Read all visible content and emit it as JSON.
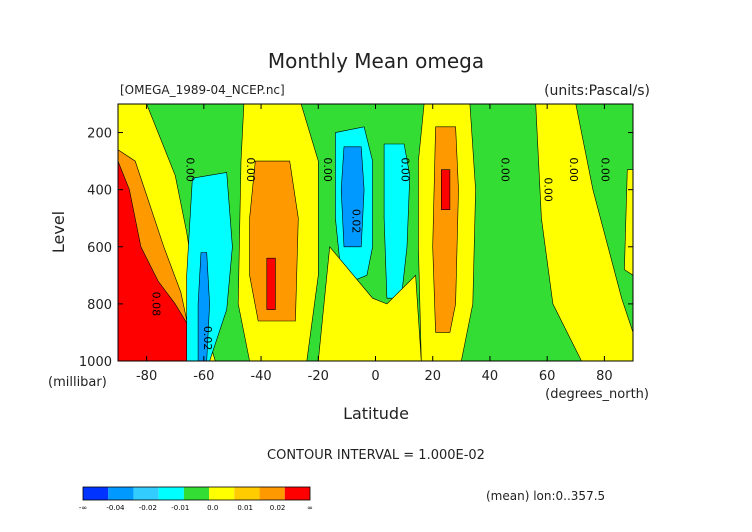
{
  "chart_data": {
    "type": "heatmap",
    "title": "Monthly Mean omega",
    "file_label": "[OMEGA_1989-04_NCEP.nc]",
    "units_label": "(units:Pascal/s)",
    "xlabel": "Latitude",
    "x_unit_label": "(degrees_north)",
    "ylabel": "Level",
    "y_unit_label": "(millibar)",
    "xlim": [
      -90,
      90
    ],
    "ylim": [
      1000,
      100
    ],
    "x_ticks": [
      -80,
      -60,
      -40,
      -20,
      0,
      20,
      40,
      60,
      80
    ],
    "x_tick_labels": [
      "-80",
      "-60",
      "-40",
      "-20",
      "0",
      "20",
      "40",
      "60",
      "80"
    ],
    "y_ticks": [
      200,
      400,
      600,
      800,
      1000
    ],
    "y_tick_labels": [
      "200",
      "400",
      "600",
      "800",
      "1000"
    ],
    "contour_interval_text": "CONTOUR INTERVAL = 1.000E-02",
    "mean_text": "(mean) lon:0..357.5",
    "colorbar": {
      "colors": [
        "#0033ff",
        "#0099ff",
        "#33ccff",
        "#00ffff",
        "#33dd33",
        "#ffff00",
        "#ffcc00",
        "#ff9900",
        "#ff0000"
      ],
      "tick_labels": [
        "-∞",
        "-0.04",
        "-0.02",
        "-0.01",
        "0.0",
        "0.01",
        "0.02",
        "∞"
      ]
    },
    "regions": [
      {
        "name": "green-background",
        "color": "#33dd33",
        "points": [
          [
            -90,
            100
          ],
          [
            90,
            100
          ],
          [
            90,
            1000
          ],
          [
            -90,
            1000
          ]
        ]
      },
      {
        "name": "yellow-southern-pole",
        "color": "#ffff00",
        "points": [
          [
            -90,
            100
          ],
          [
            -80,
            100
          ],
          [
            -76,
            200
          ],
          [
            -70,
            350
          ],
          [
            -66,
            550
          ],
          [
            -62,
            800
          ],
          [
            -56,
            1000
          ],
          [
            -90,
            1000
          ]
        ]
      },
      {
        "name": "orange-southern-pole",
        "color": "#ff9900",
        "points": [
          [
            -90,
            260
          ],
          [
            -84,
            300
          ],
          [
            -79,
            450
          ],
          [
            -74,
            600
          ],
          [
            -68,
            760
          ],
          [
            -63,
            1000
          ],
          [
            -90,
            1000
          ]
        ]
      },
      {
        "name": "red-southern-pole",
        "color": "#ff0000",
        "points": [
          [
            -90,
            300
          ],
          [
            -86,
            400
          ],
          [
            -82,
            600
          ],
          [
            -76,
            720
          ],
          [
            -70,
            800
          ],
          [
            -64,
            900
          ],
          [
            -63,
            1000
          ],
          [
            -90,
            1000
          ]
        ]
      },
      {
        "name": "cyan-60s",
        "color": "#00ffff",
        "points": [
          [
            -64,
            360
          ],
          [
            -52,
            340
          ],
          [
            -50,
            600
          ],
          [
            -52,
            820
          ],
          [
            -58,
            1000
          ],
          [
            -66,
            1000
          ],
          [
            -66,
            700
          ]
        ]
      },
      {
        "name": "blue-60s",
        "color": "#0099ff",
        "points": [
          [
            -61,
            620
          ],
          [
            -59,
            620
          ],
          [
            -58,
            800
          ],
          [
            -59,
            1000
          ],
          [
            -62,
            1000
          ],
          [
            -62,
            800
          ]
        ]
      },
      {
        "name": "yellow-40s",
        "color": "#ffff00",
        "points": [
          [
            -46,
            100
          ],
          [
            -26,
            100
          ],
          [
            -20,
            300
          ],
          [
            -20,
            700
          ],
          [
            -24,
            1000
          ],
          [
            -44,
            1000
          ],
          [
            -48,
            800
          ],
          [
            -47,
            300
          ]
        ]
      },
      {
        "name": "orange-40s",
        "color": "#ff9900",
        "points": [
          [
            -42,
            300
          ],
          [
            -30,
            300
          ],
          [
            -27,
            500
          ],
          [
            -28,
            860
          ],
          [
            -41,
            860
          ],
          [
            -44,
            700
          ],
          [
            -44,
            500
          ]
        ]
      },
      {
        "name": "red-40s",
        "color": "#ff0000",
        "points": [
          [
            -38,
            640
          ],
          [
            -35,
            640
          ],
          [
            -35,
            820
          ],
          [
            -38,
            820
          ]
        ]
      },
      {
        "name": "cyan-tropics",
        "color": "#00ffff",
        "points": [
          [
            -14,
            200
          ],
          [
            -4,
            180
          ],
          [
            -1,
            300
          ],
          [
            -1,
            600
          ],
          [
            -3,
            700
          ],
          [
            -8,
            720
          ],
          [
            -12,
            700
          ],
          [
            -14,
            500
          ]
        ]
      },
      {
        "name": "blue-tropics",
        "color": "#0099ff",
        "points": [
          [
            -11,
            250
          ],
          [
            -5,
            250
          ],
          [
            -4,
            400
          ],
          [
            -5,
            600
          ],
          [
            -11,
            600
          ],
          [
            -12,
            400
          ]
        ]
      },
      {
        "name": "cyan-equator-north",
        "color": "#00ffff",
        "points": [
          [
            3,
            240
          ],
          [
            10,
            240
          ],
          [
            12,
            350
          ],
          [
            11,
            600
          ],
          [
            9,
            780
          ],
          [
            4,
            780
          ],
          [
            3,
            500
          ]
        ]
      },
      {
        "name": "yellow-tropics-band",
        "color": "#ffff00",
        "points": [
          [
            -16,
            600
          ],
          [
            -1,
            780
          ],
          [
            4,
            800
          ],
          [
            14,
            700
          ],
          [
            16,
            1000
          ],
          [
            -20,
            1000
          ]
        ]
      },
      {
        "name": "yellow-20n",
        "color": "#ffff00",
        "points": [
          [
            17,
            100
          ],
          [
            33,
            100
          ],
          [
            35,
            400
          ],
          [
            34,
            800
          ],
          [
            30,
            1000
          ],
          [
            16,
            1000
          ],
          [
            15,
            600
          ],
          [
            15,
            300
          ]
        ]
      },
      {
        "name": "orange-20n",
        "color": "#ff9900",
        "points": [
          [
            21,
            180
          ],
          [
            28,
            180
          ],
          [
            29,
            400
          ],
          [
            28,
            800
          ],
          [
            26,
            900
          ],
          [
            21,
            900
          ],
          [
            20,
            600
          ]
        ]
      },
      {
        "name": "red-20n",
        "color": "#ff0000",
        "points": [
          [
            23,
            330
          ],
          [
            26,
            330
          ],
          [
            26,
            470
          ],
          [
            23,
            470
          ]
        ]
      },
      {
        "name": "yellow-north-pole",
        "color": "#ffff00",
        "points": [
          [
            56,
            100
          ],
          [
            70,
            100
          ],
          [
            76,
            400
          ],
          [
            86,
            780
          ],
          [
            90,
            900
          ],
          [
            90,
            1000
          ],
          [
            72,
            1000
          ],
          [
            62,
            800
          ],
          [
            58,
            500
          ]
        ]
      },
      {
        "name": "yellow-pole-edge",
        "color": "#ffff00",
        "points": [
          [
            88,
            330
          ],
          [
            90,
            330
          ],
          [
            90,
            700
          ],
          [
            87,
            680
          ]
        ]
      }
    ],
    "contour_labels": [
      {
        "text": "0.00",
        "lat": -66,
        "lev": 330
      },
      {
        "text": "0.00",
        "lat": -45,
        "lev": 330
      },
      {
        "text": "0.00",
        "lat": -18,
        "lev": 330
      },
      {
        "text": "0.02",
        "lat": -8,
        "lev": 510
      },
      {
        "text": "0.00",
        "lat": 9,
        "lev": 330
      },
      {
        "text": "0.00",
        "lat": 44,
        "lev": 330
      },
      {
        "text": "0.00",
        "lat": 59,
        "lev": 400
      },
      {
        "text": "0.00",
        "lat": 68,
        "lev": 330
      },
      {
        "text": "0.00",
        "lat": 79,
        "lev": 330
      },
      {
        "text": "0.02",
        "lat": -60,
        "lev": 920
      },
      {
        "text": "0.08",
        "lat": -78,
        "lev": 800
      }
    ]
  }
}
